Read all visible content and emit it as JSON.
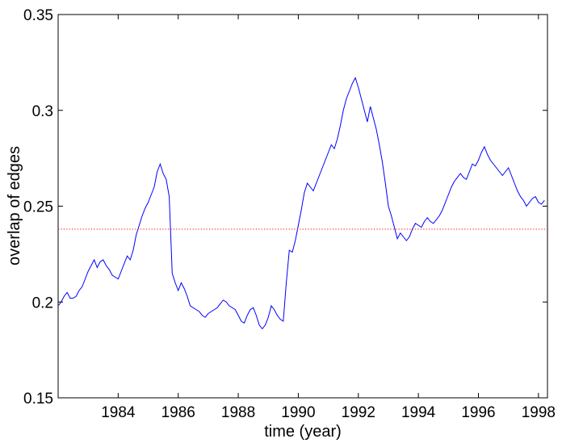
{
  "chart_data": {
    "type": "line",
    "title": "",
    "xlabel": "time (year)",
    "ylabel": "overlap of edges",
    "xlim": [
      1982.0,
      1998.3
    ],
    "ylim": [
      0.15,
      0.35
    ],
    "xticks": [
      1984,
      1986,
      1988,
      1990,
      1992,
      1994,
      1996,
      1998
    ],
    "yticks": [
      0.15,
      0.2,
      0.25,
      0.3,
      0.35
    ],
    "xtick_labels": [
      "1984",
      "1986",
      "1988",
      "1990",
      "1992",
      "1994",
      "1996",
      "1998"
    ],
    "ytick_labels": [
      "0.15",
      "0.2",
      "0.25",
      "0.3",
      "0.35"
    ],
    "grid": false,
    "series": [
      {
        "color": "#0000ff",
        "style": "solid",
        "x": [
          1982.0,
          1982.1,
          1982.2,
          1982.3,
          1982.4,
          1982.5,
          1982.6,
          1982.7,
          1982.8,
          1982.9,
          1983.0,
          1983.1,
          1983.2,
          1983.3,
          1983.4,
          1983.5,
          1983.6,
          1983.7,
          1983.8,
          1983.9,
          1984.0,
          1984.1,
          1984.2,
          1984.3,
          1984.4,
          1984.5,
          1984.6,
          1984.7,
          1984.8,
          1984.9,
          1985.0,
          1985.1,
          1985.2,
          1985.3,
          1985.4,
          1985.5,
          1985.6,
          1985.7,
          1985.8,
          1985.9,
          1986.0,
          1986.1,
          1986.2,
          1986.3,
          1986.4,
          1986.5,
          1986.6,
          1986.7,
          1986.8,
          1986.9,
          1987.0,
          1987.1,
          1987.2,
          1987.3,
          1987.4,
          1987.5,
          1987.6,
          1987.7,
          1987.8,
          1987.9,
          1988.0,
          1988.1,
          1988.2,
          1988.3,
          1988.4,
          1988.5,
          1988.6,
          1988.7,
          1988.8,
          1988.9,
          1989.0,
          1989.1,
          1989.2,
          1989.3,
          1989.4,
          1989.5,
          1989.6,
          1989.7,
          1989.8,
          1989.9,
          1990.0,
          1990.1,
          1990.2,
          1990.3,
          1990.4,
          1990.5,
          1990.6,
          1990.7,
          1990.8,
          1990.9,
          1991.0,
          1991.1,
          1991.2,
          1991.3,
          1991.4,
          1991.5,
          1991.6,
          1991.7,
          1991.8,
          1991.9,
          1992.0,
          1992.1,
          1992.2,
          1992.3,
          1992.4,
          1992.5,
          1992.6,
          1992.7,
          1992.8,
          1992.9,
          1993.0,
          1993.1,
          1993.2,
          1993.3,
          1993.4,
          1993.5,
          1993.6,
          1993.7,
          1993.8,
          1993.9,
          1994.0,
          1994.1,
          1994.2,
          1994.3,
          1994.4,
          1994.5,
          1994.6,
          1994.7,
          1994.8,
          1994.9,
          1995.0,
          1995.1,
          1995.2,
          1995.3,
          1995.4,
          1995.5,
          1995.6,
          1995.7,
          1995.8,
          1995.9,
          1996.0,
          1996.1,
          1996.2,
          1996.3,
          1996.4,
          1996.5,
          1996.6,
          1996.7,
          1996.8,
          1996.9,
          1997.0,
          1997.1,
          1997.2,
          1997.3,
          1997.4,
          1997.5,
          1997.6,
          1997.7,
          1997.8,
          1997.9,
          1998.0,
          1998.1,
          1998.2
        ],
        "values": [
          0.198,
          0.2,
          0.203,
          0.205,
          0.202,
          0.202,
          0.203,
          0.206,
          0.208,
          0.212,
          0.216,
          0.219,
          0.222,
          0.218,
          0.221,
          0.222,
          0.219,
          0.217,
          0.214,
          0.213,
          0.212,
          0.216,
          0.22,
          0.224,
          0.222,
          0.227,
          0.235,
          0.24,
          0.245,
          0.249,
          0.252,
          0.256,
          0.26,
          0.268,
          0.272,
          0.267,
          0.264,
          0.255,
          0.215,
          0.21,
          0.206,
          0.21,
          0.207,
          0.203,
          0.198,
          0.197,
          0.196,
          0.195,
          0.193,
          0.192,
          0.194,
          0.195,
          0.196,
          0.197,
          0.199,
          0.201,
          0.2,
          0.198,
          0.197,
          0.196,
          0.193,
          0.19,
          0.189,
          0.193,
          0.196,
          0.197,
          0.193,
          0.188,
          0.186,
          0.188,
          0.192,
          0.198,
          0.196,
          0.193,
          0.191,
          0.19,
          0.21,
          0.227,
          0.226,
          0.232,
          0.24,
          0.248,
          0.257,
          0.262,
          0.26,
          0.258,
          0.262,
          0.266,
          0.27,
          0.274,
          0.278,
          0.282,
          0.28,
          0.285,
          0.292,
          0.3,
          0.306,
          0.31,
          0.314,
          0.317,
          0.312,
          0.306,
          0.3,
          0.294,
          0.302,
          0.296,
          0.29,
          0.282,
          0.273,
          0.262,
          0.25,
          0.245,
          0.239,
          0.233,
          0.236,
          0.234,
          0.232,
          0.234,
          0.238,
          0.241,
          0.24,
          0.239,
          0.242,
          0.244,
          0.242,
          0.241,
          0.243,
          0.245,
          0.248,
          0.252,
          0.256,
          0.26,
          0.263,
          0.265,
          0.267,
          0.265,
          0.264,
          0.268,
          0.272,
          0.271,
          0.274,
          0.278,
          0.281,
          0.277,
          0.274,
          0.272,
          0.27,
          0.268,
          0.266,
          0.268,
          0.27,
          0.266,
          0.262,
          0.258,
          0.255,
          0.253,
          0.25,
          0.252,
          0.254,
          0.255,
          0.252,
          0.251,
          0.253
        ]
      },
      {
        "color": "#ff0000",
        "style": "dotted",
        "x": [
          1982.0,
          1998.3
        ],
        "values": [
          0.238,
          0.238
        ]
      }
    ]
  }
}
